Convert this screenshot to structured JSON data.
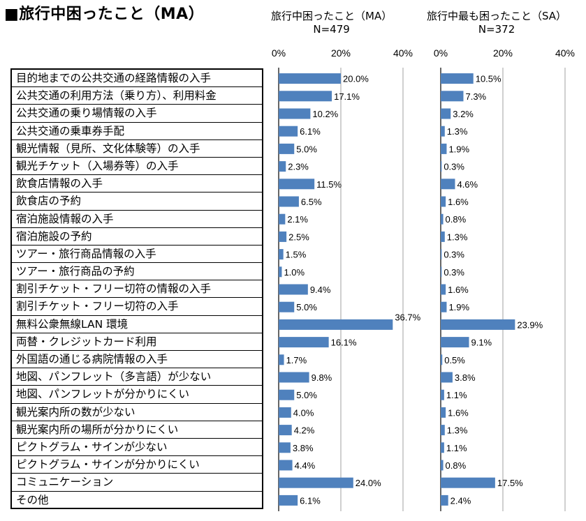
{
  "page_title": "■旅行中困ったこと（MA）",
  "chart_data": [
    {
      "type": "bar",
      "orientation": "horizontal",
      "title": "旅行中困ったこと（MA）",
      "subtitle": "N=479",
      "xlim": [
        0,
        40
      ],
      "ticks": [
        "0%",
        "20%",
        "40%"
      ],
      "tick_values": [
        0,
        20,
        40
      ],
      "unit": "%",
      "values": [
        20.0,
        17.1,
        10.2,
        6.1,
        5.0,
        2.3,
        11.5,
        6.5,
        2.1,
        2.5,
        1.5,
        1.0,
        9.4,
        5.0,
        36.7,
        16.1,
        1.7,
        9.8,
        5.0,
        4.0,
        4.2,
        3.8,
        4.4,
        24.0,
        6.1
      ],
      "value_labels": [
        "20.0%",
        "17.1%",
        "10.2%",
        "6.1%",
        "5.0%",
        "2.3%",
        "11.5%",
        "6.5%",
        "2.1%",
        "2.5%",
        "1.5%",
        "1.0%",
        "9.4%",
        "5.0%",
        "36.7%",
        "16.1%",
        "1.7%",
        "9.8%",
        "5.0%",
        "4.0%",
        "4.2%",
        "3.8%",
        "4.4%",
        "24.0%",
        "6.1%"
      ],
      "bar_color": "#4f81bd"
    },
    {
      "type": "bar",
      "orientation": "horizontal",
      "title": "旅行中最も困ったこと（SA）",
      "subtitle": "N=372",
      "xlim": [
        0,
        40
      ],
      "ticks": [
        "0%",
        "20%",
        "40%"
      ],
      "tick_values": [
        0,
        20,
        40
      ],
      "unit": "%",
      "values": [
        10.5,
        7.3,
        3.2,
        1.3,
        1.9,
        0.3,
        4.6,
        1.6,
        0.8,
        1.3,
        0.3,
        0.3,
        1.6,
        1.9,
        23.9,
        9.1,
        0.5,
        3.8,
        1.1,
        1.6,
        1.3,
        1.1,
        0.8,
        17.5,
        2.4
      ],
      "value_labels": [
        "10.5%",
        "7.3%",
        "3.2%",
        "1.3%",
        "1.9%",
        "0.3%",
        "4.6%",
        "1.6%",
        "0.8%",
        "1.3%",
        "0.3%",
        "0.3%",
        "1.6%",
        "1.9%",
        "23.9%",
        "9.1%",
        "0.5%",
        "3.8%",
        "1.1%",
        "1.6%",
        "1.3%",
        "1.1%",
        "0.8%",
        "17.5%",
        "2.4%"
      ],
      "bar_color": "#4f81bd"
    }
  ],
  "categories": [
    "目的地までの公共交通の経路情報の入手",
    "公共交通の利用方法（乗り方）、利用料金",
    "公共交通の乗り場情報の入手",
    "公共交通の乗車券手配",
    "観光情報（見所、文化体験等）の入手",
    "観光チケット（入場券等）の入手",
    "飲食店情報の入手",
    "飲食店の予約",
    "宿泊施設情報の入手",
    "宿泊施設の予約",
    "ツアー・旅行商品情報の入手",
    "ツアー・旅行商品の予約",
    "割引チケット・フリー切符の情報の入手",
    "割引チケット・フリー切符の入手",
    "無料公衆無線LAN 環境",
    "両替・クレジットカード利用",
    "外国語の通じる病院情報の入手",
    "地図、パンフレット（多言語）が少ない",
    "地図、パンフレットが分かりにくい",
    "観光案内所の数が少ない",
    "観光案内所の場所が分かりにくい",
    "ピクトグラム・サインが少ない",
    "ピクトグラム・サインが分かりにくい",
    "コミュニケーション",
    "その他"
  ]
}
